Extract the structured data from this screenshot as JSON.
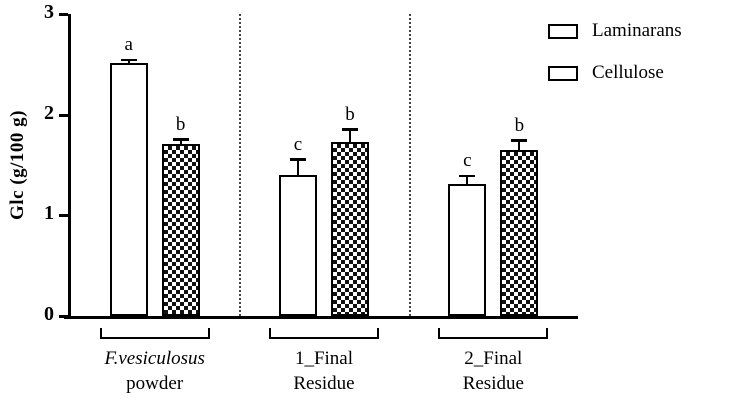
{
  "chart_data": {
    "type": "bar",
    "title": "",
    "xlabel": "",
    "ylabel": "Glc (g/100 g)",
    "ylim": [
      0,
      3
    ],
    "yticks": [
      0,
      1,
      2,
      3
    ],
    "grid": false,
    "legend_position": "top-right",
    "separators": true,
    "groups": [
      {
        "label_lines": [
          "F.vesiculosus",
          "powder"
        ],
        "italic_first_line": true
      },
      {
        "label_lines": [
          "1_Final",
          "Residue"
        ],
        "italic_first_line": false
      },
      {
        "label_lines": [
          "2_Final",
          "Residue"
        ],
        "italic_first_line": false
      }
    ],
    "series": [
      {
        "name": "Laminarans",
        "fill": "white",
        "values": [
          2.51,
          1.4,
          1.31
        ],
        "errors": [
          0.03,
          0.15,
          0.08
        ],
        "letters": [
          "a",
          "c",
          "c"
        ]
      },
      {
        "name": "Cellulose",
        "fill": "checker",
        "values": [
          1.71,
          1.73,
          1.65
        ],
        "errors": [
          0.04,
          0.12,
          0.09
        ],
        "letters": [
          "b",
          "b",
          "b"
        ]
      }
    ]
  },
  "colors": {
    "axis": "#000000",
    "bar_border": "#000000",
    "laminarans_fill": "#ffffff",
    "cellulose_pattern": "#111111",
    "separator": "#444444"
  }
}
